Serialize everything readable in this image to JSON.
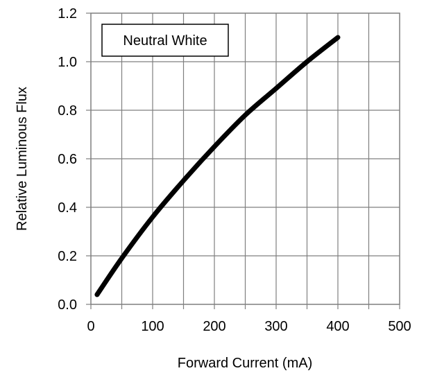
{
  "chart_data": {
    "type": "line",
    "title": "",
    "xlabel": "Forward Current (mA)",
    "ylabel": "Relative Luminous Flux",
    "xlim": [
      0,
      500
    ],
    "ylim": [
      0,
      1.2
    ],
    "x_ticks": [
      "0",
      "100",
      "200",
      "300",
      "400",
      "500"
    ],
    "y_ticks": [
      "0.0",
      "0.2",
      "0.4",
      "0.6",
      "0.8",
      "1.0",
      "1.2"
    ],
    "x_minor_step": 50,
    "grid": true,
    "legend": {
      "position": "top-left",
      "label": "Neutral White"
    },
    "series": [
      {
        "color": "#000000",
        "x": [
          10,
          50,
          100,
          150,
          200,
          250,
          300,
          350,
          400
        ],
        "y": [
          0.04,
          0.19,
          0.36,
          0.51,
          0.65,
          0.78,
          0.89,
          1.0,
          1.1
        ]
      }
    ]
  }
}
